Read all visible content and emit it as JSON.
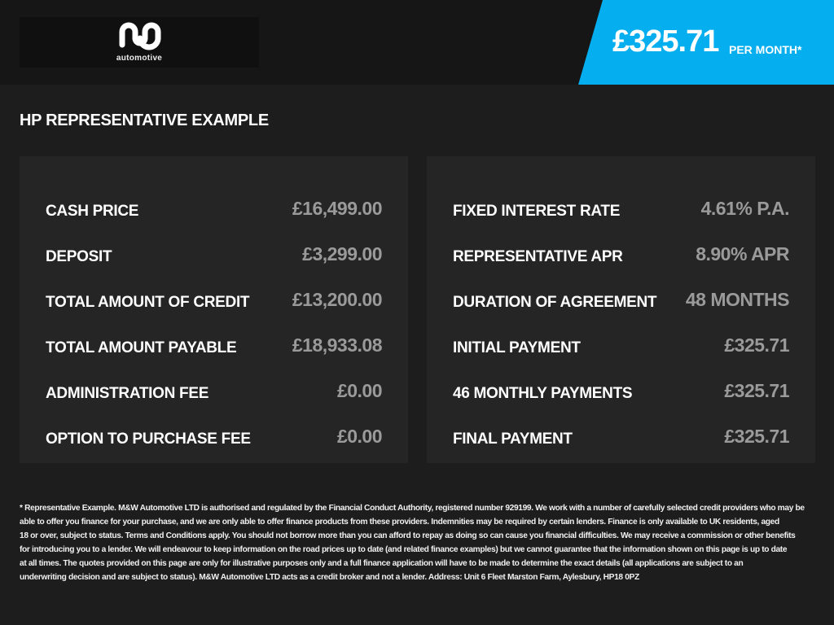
{
  "header": {
    "logo_text": "automotive",
    "price": "£325.71",
    "per_month": "PER MONTH*",
    "accent": "#05aeef"
  },
  "title": "HP REPRESENTATIVE EXAMPLE",
  "left": [
    {
      "label": "CASH PRICE",
      "value": "£16,499.00"
    },
    {
      "label": "DEPOSIT",
      "value": "£3,299.00"
    },
    {
      "label": "TOTAL AMOUNT OF CREDIT",
      "value": "£13,200.00"
    },
    {
      "label": "TOTAL AMOUNT PAYABLE",
      "value": "£18,933.08"
    },
    {
      "label": "ADMINISTRATION FEE",
      "value": "£0.00"
    },
    {
      "label": "OPTION TO PURCHASE FEE",
      "value": "£0.00"
    }
  ],
  "right": [
    {
      "label": "FIXED INTEREST RATE",
      "value": "4.61% P.A."
    },
    {
      "label": "REPRESENTATIVE APR",
      "value": "8.90% APR"
    },
    {
      "label": "DURATION OF AGREEMENT",
      "value": "48 MONTHS"
    },
    {
      "label": "INITIAL PAYMENT",
      "value": "£325.71"
    },
    {
      "label": "46 MONTHLY PAYMENTS",
      "value": "£325.71"
    },
    {
      "label": "FINAL PAYMENT",
      "value": "£325.71"
    }
  ],
  "footer": [
    "* Representative Example. M&W Automotive LTD is authorised and regulated by the Financial Conduct Authority, registered number 929199. We work with a number of carefully selected credit providers who may be",
    "able to offer you finance for your purchase, and we are only able to offer finance products from these providers. Indemnities may be required by certain lenders. Finance is only available to UK residents, aged",
    "18 or over, subject to status. Terms and Conditions apply. You should not borrow more than you can afford to repay as doing so can cause you financial difficulties. We may receive a commission or other benefits",
    "for introducing you to a lender. We will endeavour to keep information on the road prices up to date (and related finance examples) but we cannot guarantee that the information shown on this page is up to date",
    "at all times. The quotes provided on this page are only for illustrative purposes only and a full finance application will have to be made to determine the exact details (all applications are subject to an",
    "underwriting decision and are subject to status). M&W Automotive LTD acts as a credit broker and not a lender. Address: Unit 6 Fleet Marston Farm, Aylesbury, HP18 0PZ"
  ]
}
